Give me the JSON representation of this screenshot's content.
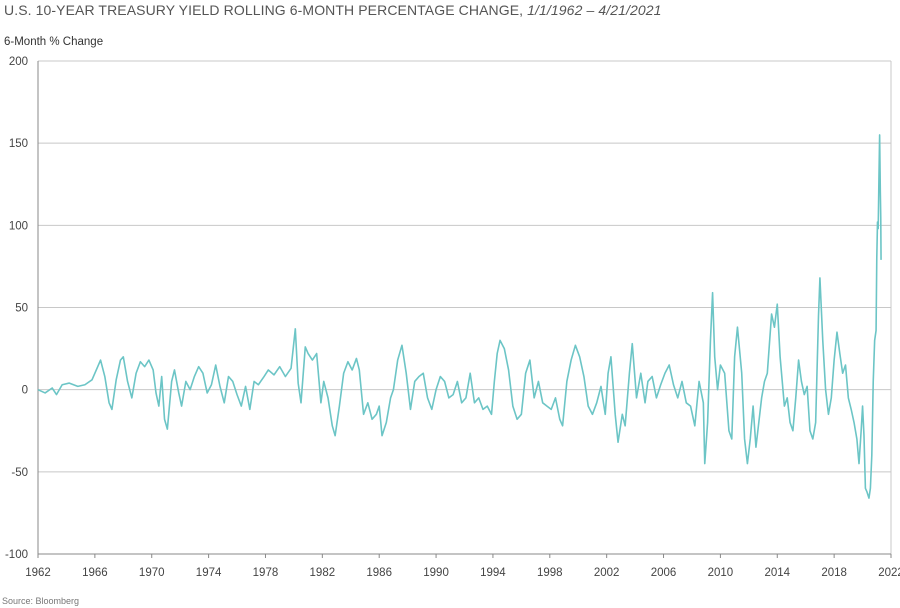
{
  "title": {
    "main": "U.S. 10-YEAR TREASURY YIELD ROLLING 6-MONTH PERCENTAGE CHANGE,",
    "span": "1/1/1962 – 4/21/2021"
  },
  "source": "Source: Bloomberg",
  "colors": {
    "line": "#6cc5c6",
    "grid": "#c8c8c8",
    "axis": "#888888"
  },
  "chart_data": {
    "type": "line",
    "ylabel": "6-Month % Change",
    "ylim": [
      -100,
      200
    ],
    "yticks": [
      200,
      150,
      100,
      50,
      0,
      -50,
      -100
    ],
    "xlim": [
      1962,
      2022
    ],
    "xticks": [
      1962,
      1966,
      1970,
      1974,
      1978,
      1982,
      1986,
      1990,
      1994,
      1998,
      2002,
      2006,
      2010,
      2014,
      2018,
      2022
    ],
    "grid": "horizontal",
    "series": [
      {
        "values": [
          [
            1962.0,
            0
          ],
          [
            1962.5,
            -2
          ],
          [
            1963.0,
            1
          ],
          [
            1963.3,
            -3
          ],
          [
            1963.7,
            3
          ],
          [
            1964.2,
            4
          ],
          [
            1964.8,
            2
          ],
          [
            1965.3,
            3
          ],
          [
            1965.8,
            6
          ],
          [
            1966.2,
            14
          ],
          [
            1966.4,
            18
          ],
          [
            1966.7,
            8
          ],
          [
            1967.0,
            -8
          ],
          [
            1967.2,
            -12
          ],
          [
            1967.5,
            6
          ],
          [
            1967.8,
            18
          ],
          [
            1968.0,
            20
          ],
          [
            1968.3,
            5
          ],
          [
            1968.6,
            -5
          ],
          [
            1968.9,
            10
          ],
          [
            1969.2,
            17
          ],
          [
            1969.5,
            14
          ],
          [
            1969.8,
            18
          ],
          [
            1970.1,
            12
          ],
          [
            1970.3,
            -2
          ],
          [
            1970.5,
            -10
          ],
          [
            1970.7,
            8
          ],
          [
            1970.9,
            -18
          ],
          [
            1971.1,
            -24
          ],
          [
            1971.4,
            5
          ],
          [
            1971.6,
            12
          ],
          [
            1971.9,
            -2
          ],
          [
            1972.1,
            -10
          ],
          [
            1972.4,
            5
          ],
          [
            1972.7,
            0
          ],
          [
            1973.0,
            8
          ],
          [
            1973.3,
            14
          ],
          [
            1973.6,
            10
          ],
          [
            1973.9,
            -2
          ],
          [
            1974.2,
            3
          ],
          [
            1974.5,
            15
          ],
          [
            1974.8,
            2
          ],
          [
            1975.1,
            -8
          ],
          [
            1975.4,
            8
          ],
          [
            1975.7,
            5
          ],
          [
            1976.0,
            -3
          ],
          [
            1976.3,
            -10
          ],
          [
            1976.6,
            2
          ],
          [
            1976.9,
            -12
          ],
          [
            1977.2,
            5
          ],
          [
            1977.5,
            3
          ],
          [
            1977.9,
            8
          ],
          [
            1978.2,
            12
          ],
          [
            1978.6,
            9
          ],
          [
            1979.0,
            14
          ],
          [
            1979.4,
            8
          ],
          [
            1979.8,
            13
          ],
          [
            1980.1,
            37
          ],
          [
            1980.3,
            4
          ],
          [
            1980.5,
            -8
          ],
          [
            1980.8,
            26
          ],
          [
            1981.0,
            22
          ],
          [
            1981.3,
            18
          ],
          [
            1981.6,
            22
          ],
          [
            1981.9,
            -8
          ],
          [
            1982.1,
            5
          ],
          [
            1982.4,
            -5
          ],
          [
            1982.7,
            -22
          ],
          [
            1982.9,
            -28
          ],
          [
            1983.2,
            -10
          ],
          [
            1983.5,
            10
          ],
          [
            1983.8,
            17
          ],
          [
            1984.1,
            12
          ],
          [
            1984.4,
            19
          ],
          [
            1984.6,
            12
          ],
          [
            1984.9,
            -15
          ],
          [
            1985.2,
            -8
          ],
          [
            1985.5,
            -18
          ],
          [
            1985.8,
            -15
          ],
          [
            1986.0,
            -10
          ],
          [
            1986.2,
            -28
          ],
          [
            1986.5,
            -20
          ],
          [
            1986.8,
            -5
          ],
          [
            1987.0,
            0
          ],
          [
            1987.3,
            18
          ],
          [
            1987.6,
            27
          ],
          [
            1987.9,
            10
          ],
          [
            1988.2,
            -12
          ],
          [
            1988.5,
            5
          ],
          [
            1988.8,
            8
          ],
          [
            1989.1,
            10
          ],
          [
            1989.4,
            -5
          ],
          [
            1989.7,
            -12
          ],
          [
            1990.0,
            0
          ],
          [
            1990.3,
            8
          ],
          [
            1990.6,
            5
          ],
          [
            1990.9,
            -5
          ],
          [
            1991.2,
            -3
          ],
          [
            1991.5,
            5
          ],
          [
            1991.8,
            -8
          ],
          [
            1992.1,
            -5
          ],
          [
            1992.4,
            10
          ],
          [
            1992.7,
            -8
          ],
          [
            1993.0,
            -5
          ],
          [
            1993.3,
            -12
          ],
          [
            1993.6,
            -10
          ],
          [
            1993.9,
            -15
          ],
          [
            1994.1,
            5
          ],
          [
            1994.3,
            22
          ],
          [
            1994.5,
            30
          ],
          [
            1994.8,
            25
          ],
          [
            1995.1,
            12
          ],
          [
            1995.4,
            -10
          ],
          [
            1995.7,
            -18
          ],
          [
            1996.0,
            -15
          ],
          [
            1996.3,
            10
          ],
          [
            1996.6,
            18
          ],
          [
            1996.9,
            -5
          ],
          [
            1997.2,
            5
          ],
          [
            1997.5,
            -8
          ],
          [
            1997.8,
            -10
          ],
          [
            1998.1,
            -12
          ],
          [
            1998.4,
            -5
          ],
          [
            1998.7,
            -18
          ],
          [
            1998.9,
            -22
          ],
          [
            1999.2,
            5
          ],
          [
            1999.5,
            18
          ],
          [
            1999.8,
            27
          ],
          [
            2000.1,
            20
          ],
          [
            2000.4,
            8
          ],
          [
            2000.7,
            -10
          ],
          [
            2001.0,
            -15
          ],
          [
            2001.3,
            -8
          ],
          [
            2001.6,
            2
          ],
          [
            2001.9,
            -15
          ],
          [
            2002.1,
            10
          ],
          [
            2002.3,
            20
          ],
          [
            2002.6,
            -15
          ],
          [
            2002.8,
            -32
          ],
          [
            2003.1,
            -15
          ],
          [
            2003.3,
            -22
          ],
          [
            2003.6,
            10
          ],
          [
            2003.8,
            28
          ],
          [
            2004.1,
            -5
          ],
          [
            2004.4,
            10
          ],
          [
            2004.7,
            -8
          ],
          [
            2004.9,
            5
          ],
          [
            2005.2,
            8
          ],
          [
            2005.5,
            -5
          ],
          [
            2005.8,
            3
          ],
          [
            2006.1,
            10
          ],
          [
            2006.4,
            15
          ],
          [
            2006.7,
            3
          ],
          [
            2007.0,
            -5
          ],
          [
            2007.3,
            5
          ],
          [
            2007.6,
            -8
          ],
          [
            2007.9,
            -10
          ],
          [
            2008.2,
            -22
          ],
          [
            2008.5,
            5
          ],
          [
            2008.8,
            -8
          ],
          [
            2008.9,
            -45
          ],
          [
            2009.1,
            -20
          ],
          [
            2009.3,
            30
          ],
          [
            2009.45,
            59
          ],
          [
            2009.6,
            20
          ],
          [
            2009.8,
            0
          ],
          [
            2010.0,
            15
          ],
          [
            2010.3,
            10
          ],
          [
            2010.6,
            -25
          ],
          [
            2010.8,
            -30
          ],
          [
            2011.0,
            20
          ],
          [
            2011.2,
            38
          ],
          [
            2011.5,
            10
          ],
          [
            2011.7,
            -30
          ],
          [
            2011.9,
            -45
          ],
          [
            2012.1,
            -30
          ],
          [
            2012.3,
            -10
          ],
          [
            2012.5,
            -35
          ],
          [
            2012.7,
            -20
          ],
          [
            2012.9,
            -5
          ],
          [
            2013.1,
            5
          ],
          [
            2013.3,
            10
          ],
          [
            2013.6,
            46
          ],
          [
            2013.8,
            38
          ],
          [
            2014.0,
            52
          ],
          [
            2014.2,
            20
          ],
          [
            2014.5,
            -10
          ],
          [
            2014.7,
            -5
          ],
          [
            2014.9,
            -20
          ],
          [
            2015.1,
            -25
          ],
          [
            2015.3,
            -5
          ],
          [
            2015.5,
            18
          ],
          [
            2015.7,
            5
          ],
          [
            2015.9,
            -3
          ],
          [
            2016.1,
            2
          ],
          [
            2016.3,
            -25
          ],
          [
            2016.5,
            -30
          ],
          [
            2016.7,
            -20
          ],
          [
            2016.9,
            45
          ],
          [
            2017.0,
            68
          ],
          [
            2017.2,
            30
          ],
          [
            2017.4,
            0
          ],
          [
            2017.6,
            -15
          ],
          [
            2017.8,
            -5
          ],
          [
            2018.0,
            18
          ],
          [
            2018.2,
            35
          ],
          [
            2018.4,
            22
          ],
          [
            2018.6,
            10
          ],
          [
            2018.8,
            15
          ],
          [
            2019.0,
            -5
          ],
          [
            2019.2,
            -12
          ],
          [
            2019.4,
            -20
          ],
          [
            2019.6,
            -30
          ],
          [
            2019.75,
            -45
          ],
          [
            2019.9,
            -25
          ],
          [
            2020.0,
            -10
          ],
          [
            2020.1,
            -28
          ],
          [
            2020.2,
            -60
          ],
          [
            2020.3,
            -62
          ],
          [
            2020.45,
            -66
          ],
          [
            2020.55,
            -60
          ],
          [
            2020.65,
            -40
          ],
          [
            2020.75,
            5
          ],
          [
            2020.85,
            30
          ],
          [
            2020.95,
            36
          ],
          [
            2021.0,
            80
          ],
          [
            2021.05,
            102
          ],
          [
            2021.1,
            98
          ],
          [
            2021.15,
            128
          ],
          [
            2021.2,
            155
          ],
          [
            2021.25,
            120
          ],
          [
            2021.28,
            105
          ],
          [
            2021.3,
            79
          ]
        ]
      }
    ]
  }
}
